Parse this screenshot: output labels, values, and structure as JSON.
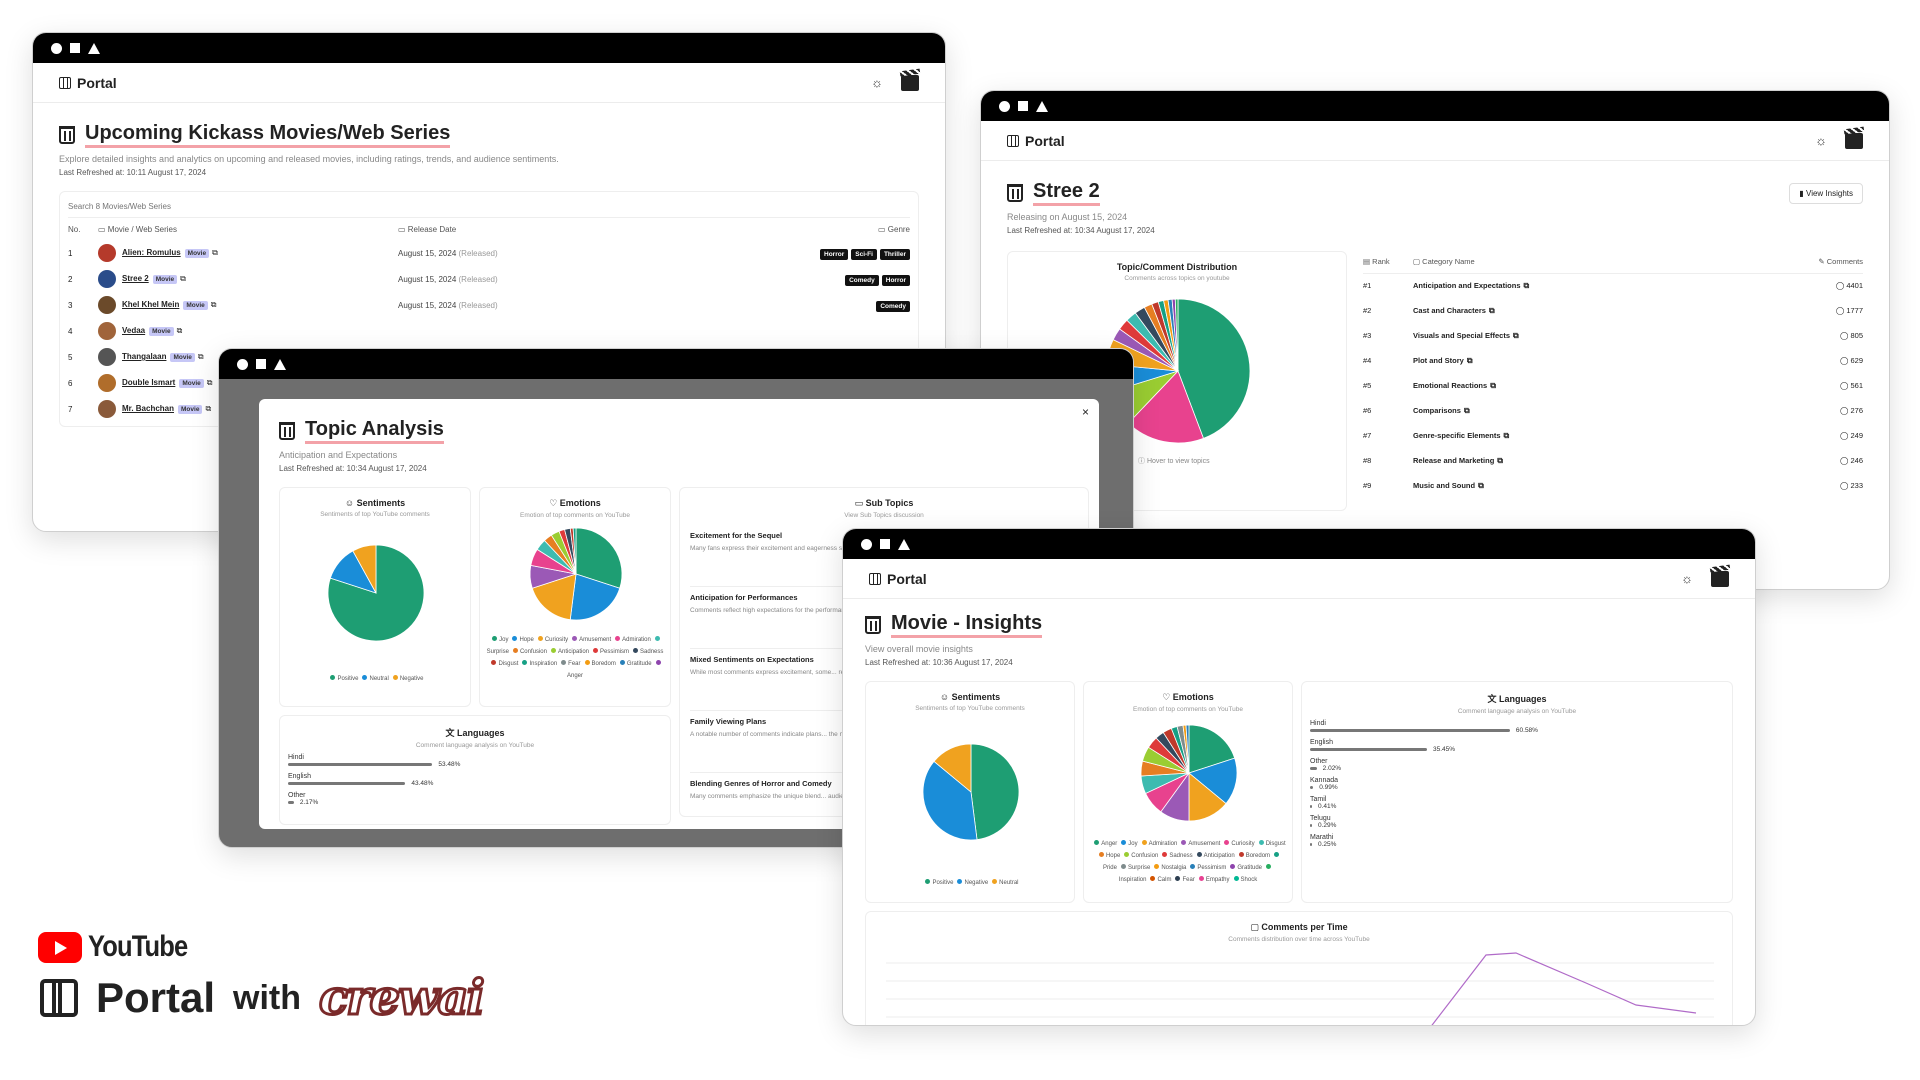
{
  "colors": {
    "pink": "#f3a2a8",
    "badge": "#c6c7f6",
    "green": "#1e9e73",
    "blue": "#1a8dd8",
    "orange": "#f0a21f",
    "magenta": "#e8428e",
    "red": "#de3a3a"
  },
  "app": {
    "brand": "Portal"
  },
  "w1": {
    "title": "Upcoming Kickass Movies/Web Series",
    "desc": "Explore detailed insights and analytics on upcoming and released movies, including ratings, trends, and audience sentiments.",
    "refreshed": "Last Refreshed at: 10:11 August 17, 2024",
    "search_placeholder": "Search 8 Movies/Web Series",
    "cols": {
      "no": "No.",
      "movie": "Movie / Web Series",
      "date": "Release Date",
      "genre": "Genre"
    },
    "rows": [
      {
        "no": "1",
        "name": "Alien: Romulus",
        "type": "Movie",
        "date": "August 15, 2024",
        "status": "(Released)",
        "genres": [
          "Horror",
          "Sci-Fi",
          "Thriller"
        ]
      },
      {
        "no": "2",
        "name": "Stree 2",
        "type": "Movie",
        "date": "August 15, 2024",
        "status": "(Released)",
        "genres": [
          "Comedy",
          "Horror"
        ]
      },
      {
        "no": "3",
        "name": "Khel Khel Mein",
        "type": "Movie",
        "date": "August 15, 2024",
        "status": "(Released)",
        "genres": [
          "Comedy"
        ]
      },
      {
        "no": "4",
        "name": "Vedaa",
        "type": "Movie",
        "date": "",
        "status": "",
        "genres": []
      },
      {
        "no": "5",
        "name": "Thangalaan",
        "type": "Movie",
        "date": "",
        "status": "",
        "genres": []
      },
      {
        "no": "6",
        "name": "Double Ismart",
        "type": "Movie",
        "date": "",
        "status": "",
        "genres": []
      },
      {
        "no": "7",
        "name": "Mr. Bachchan",
        "type": "Movie",
        "date": "",
        "status": "",
        "genres": []
      }
    ]
  },
  "w2": {
    "title": "Stree 2",
    "release": "Releasing on August 15, 2024",
    "refreshed": "Last Refreshed at: 10:34 August 17, 2024",
    "view_btn": "View Insights",
    "dist_title": "Topic/Comment Distribution",
    "dist_sub": "Comments across topics on youtube",
    "hover": "Hover to view topics",
    "cols": {
      "rank": "Rank",
      "cat": "Category Name",
      "comments": "Comments"
    },
    "rows": [
      {
        "rank": "#1",
        "name": "Anticipation and Expectations",
        "count": "4401"
      },
      {
        "rank": "#2",
        "name": "Cast and Characters",
        "count": "1777"
      },
      {
        "rank": "#3",
        "name": "Visuals and Special Effects",
        "count": "805"
      },
      {
        "rank": "#4",
        "name": "Plot and Story",
        "count": "629"
      },
      {
        "rank": "#5",
        "name": "Emotional Reactions",
        "count": "561"
      },
      {
        "rank": "#6",
        "name": "Comparisons",
        "count": "276"
      },
      {
        "rank": "#7",
        "name": "Genre-specific Elements",
        "count": "249"
      },
      {
        "rank": "#8",
        "name": "Release and Marketing",
        "count": "246"
      },
      {
        "rank": "#9",
        "name": "Music and Sound",
        "count": "233"
      }
    ]
  },
  "w3": {
    "title": "Topic Analysis",
    "sub": "Anticipation and Expectations",
    "refreshed": "Last Refreshed at: 10:34 August 17, 2024",
    "sent_title": "Sentiments",
    "sent_sub": "Sentiments of top YouTube comments",
    "sent_legend": [
      "Positive",
      "Neutral",
      "Negative"
    ],
    "emo_title": "Emotions",
    "emo_sub": "Emotion of top comments on YouTube",
    "emo_legend": [
      "Joy",
      "Hope",
      "Curiosity",
      "Amusement",
      "Admiration",
      "Surprise",
      "Confusion",
      "Anticipation",
      "Pessimism",
      "Sadness",
      "Disgust",
      "Inspiration",
      "Fear",
      "Boredom",
      "Gratitude",
      "Anger"
    ],
    "subtopics_title": "Sub Topics",
    "subtopics_sub": "View Sub Topics discussion",
    "subtopics": [
      {
        "title": "Excitement for the Sequel",
        "text": "Many fans express their excitement and eagerness since the first movie. Comments highlight how... to theaters."
      },
      {
        "title": "Anticipation for Performances",
        "text": "Comments reflect high expectations for the performances... Shraddha Kapoor and Rajkummar Rao, indicating... chemistry and acting."
      },
      {
        "title": "Mixed Sentiments on Expectations",
        "text": "While most comments express excitement, some... regarding the sequel, comparing it to the original... expectations."
      },
      {
        "title": "Family Viewing Plans",
        "text": "A notable number of comments indicate plans... the movie is perceived as suitable for a broad... friendly experience."
      },
      {
        "title": "Blending Genres of Horror and Comedy",
        "text": "Many comments emphasize the unique blend... audience appreciation for this approach and its..."
      }
    ],
    "lang_title": "Languages",
    "lang_sub": "Comment language analysis on YouTube",
    "langs": [
      {
        "name": "Hindi",
        "pct": "53.48%",
        "v": 53.48
      },
      {
        "name": "English",
        "pct": "43.48%",
        "v": 43.48
      },
      {
        "name": "Other",
        "pct": "2.17%",
        "v": 2.17
      }
    ]
  },
  "w4": {
    "title": "Movie - Insights",
    "sub": "View overall movie insights",
    "refreshed": "Last Refreshed at: 10:36 August 17, 2024",
    "sent_title": "Sentiments",
    "sent_sub": "Sentiments of top YouTube comments",
    "sent_legend": [
      "Positive",
      "Negative",
      "Neutral"
    ],
    "emo_title": "Emotions",
    "emo_sub": "Emotion of top comments on YouTube",
    "emo_legend": [
      "Anger",
      "Joy",
      "Admiration",
      "Amusement",
      "Curiosity",
      "Disgust",
      "Hope",
      "Confusion",
      "Sadness",
      "Anticipation",
      "Boredom",
      "Pride",
      "Surprise",
      "Nostalgia",
      "Pessimism",
      "Gratitude",
      "Inspiration",
      "Calm",
      "Fear",
      "Empathy",
      "Shock"
    ],
    "lang_title": "Languages",
    "lang_sub": "Comment language analysis on YouTube",
    "langs": [
      {
        "name": "Hindi",
        "pct": "60.58%",
        "v": 60.58
      },
      {
        "name": "English",
        "pct": "35.45%",
        "v": 35.45
      },
      {
        "name": "Other",
        "pct": "2.02%",
        "v": 2.02
      },
      {
        "name": "Kannada",
        "pct": "0.99%",
        "v": 0.99
      },
      {
        "name": "Tamil",
        "pct": "0.41%",
        "v": 0.41
      },
      {
        "name": "Telugu",
        "pct": "0.29%",
        "v": 0.29
      },
      {
        "name": "Marathi",
        "pct": "0.25%",
        "v": 0.25
      }
    ],
    "time_title": "Comments per Time",
    "time_sub": "Comments distribution over time across YouTube"
  },
  "footer": {
    "youtube": "YouTube",
    "portal": "Portal",
    "with": "with",
    "crewai": "crewai"
  }
}
